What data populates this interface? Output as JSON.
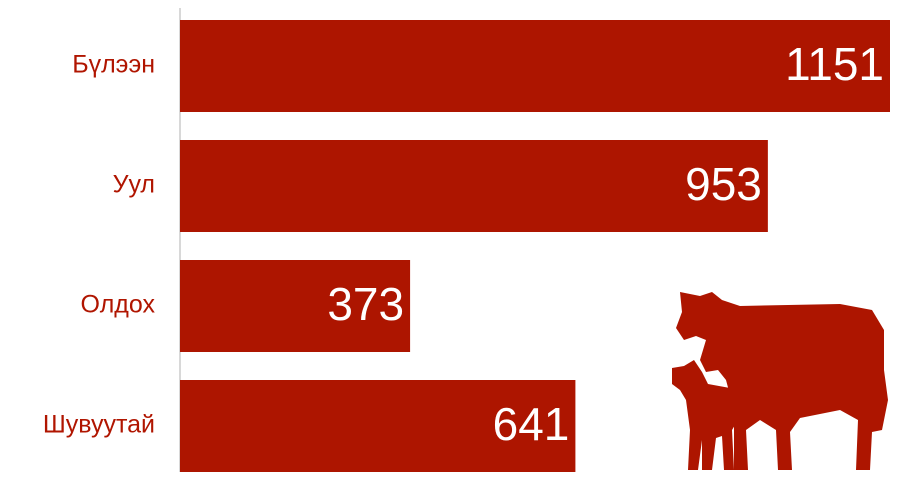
{
  "chart_data": {
    "type": "bar",
    "orientation": "horizontal",
    "categories": [
      "Бүлээн",
      "Уул",
      "Олдох",
      "Шувуутай"
    ],
    "values": [
      1151,
      953,
      373,
      641
    ],
    "color": "#ad1500"
  }
}
